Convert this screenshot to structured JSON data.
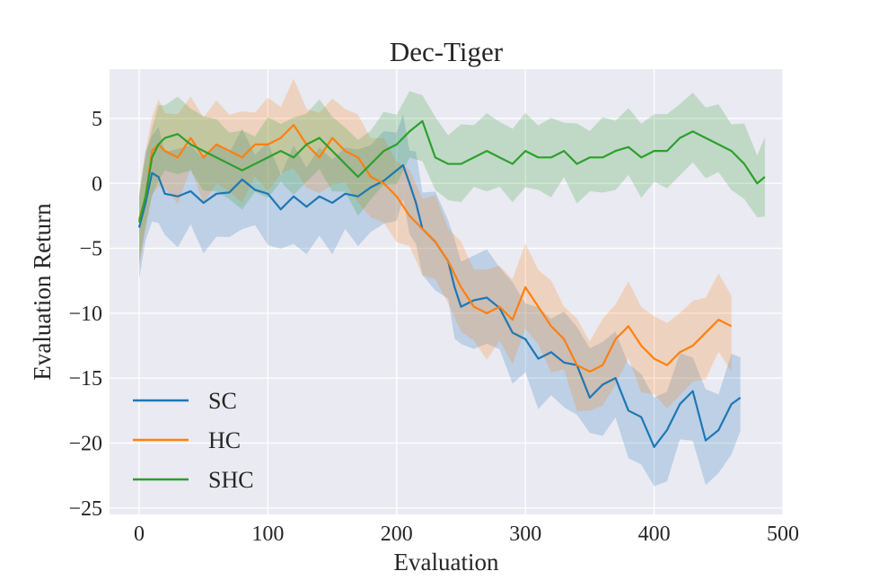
{
  "chart_data": {
    "type": "line",
    "title": "Dec-Tiger",
    "xlabel": "Evaluation",
    "ylabel": "Evaluation Return",
    "xlim": [
      -23,
      500
    ],
    "ylim": [
      -25.5,
      8.8
    ],
    "xticks": [
      0,
      100,
      200,
      300,
      400,
      500
    ],
    "yticks": [
      5,
      0,
      -5,
      -10,
      -15,
      -20,
      -25
    ],
    "xtick_labels": [
      "0",
      "100",
      "200",
      "300",
      "400",
      "500"
    ],
    "ytick_labels": [
      "5",
      "0",
      "−5",
      "−10",
      "−15",
      "−20",
      "−25"
    ],
    "grid": true,
    "legend_position": "lower-left",
    "series": [
      {
        "name": "SC",
        "color": "#1f77b4",
        "band_halfwidth": 3.3,
        "x": [
          0,
          5,
          10,
          15,
          20,
          30,
          40,
          50,
          60,
          70,
          80,
          90,
          100,
          110,
          120,
          130,
          140,
          150,
          160,
          170,
          180,
          190,
          200,
          205,
          210,
          215,
          220,
          230,
          240,
          245,
          250,
          260,
          270,
          280,
          290,
          300,
          310,
          320,
          330,
          340,
          350,
          360,
          370,
          380,
          390,
          400,
          410,
          420,
          430,
          440,
          450,
          460,
          467
        ],
        "y": [
          -3.4,
          -1.5,
          0.8,
          0.5,
          -0.8,
          -1.0,
          -0.6,
          -1.5,
          -0.8,
          -0.7,
          0.3,
          -0.5,
          -0.8,
          -2.0,
          -1.0,
          -1.8,
          -1.0,
          -1.5,
          -0.8,
          -1.0,
          -0.3,
          0.2,
          1.0,
          1.4,
          0.0,
          -1.5,
          -3.5,
          -4.5,
          -6.0,
          -8.0,
          -9.5,
          -9.0,
          -8.8,
          -9.6,
          -11.5,
          -12.0,
          -13.5,
          -13.0,
          -13.8,
          -14.0,
          -16.5,
          -15.5,
          -15.0,
          -17.5,
          -18.0,
          -20.3,
          -19.0,
          -17.0,
          -16.0,
          -19.8,
          -19.0,
          -17.0,
          -16.5
        ]
      },
      {
        "name": "HC",
        "color": "#ff7f0e",
        "band_halfwidth": 3.0,
        "x": [
          0,
          5,
          10,
          15,
          20,
          30,
          40,
          50,
          60,
          70,
          80,
          90,
          100,
          110,
          120,
          130,
          140,
          150,
          160,
          170,
          180,
          190,
          200,
          210,
          220,
          230,
          240,
          250,
          260,
          270,
          280,
          290,
          300,
          310,
          320,
          330,
          340,
          350,
          360,
          370,
          380,
          390,
          400,
          410,
          420,
          430,
          440,
          450,
          460
        ],
        "y": [
          -2.8,
          -1.0,
          2.5,
          3.0,
          2.5,
          2.0,
          3.5,
          2.0,
          3.0,
          2.5,
          2.0,
          3.0,
          3.0,
          3.5,
          4.5,
          3.0,
          2.0,
          3.5,
          2.5,
          2.0,
          0.5,
          0.0,
          -1.0,
          -2.5,
          -3.5,
          -4.5,
          -6.0,
          -8.0,
          -9.5,
          -10.0,
          -9.5,
          -10.5,
          -8.0,
          -9.5,
          -11.0,
          -12.0,
          -14.0,
          -14.5,
          -14.0,
          -12.0,
          -11.0,
          -12.5,
          -13.5,
          -14.0,
          -13.0,
          -12.5,
          -11.5,
          -10.5,
          -11.0
        ]
      },
      {
        "name": "SHC",
        "color": "#2ca02c",
        "band_halfwidth": 2.6,
        "x": [
          0,
          5,
          10,
          15,
          20,
          30,
          40,
          50,
          60,
          70,
          80,
          90,
          100,
          110,
          120,
          130,
          140,
          150,
          160,
          170,
          180,
          190,
          200,
          210,
          220,
          230,
          240,
          250,
          260,
          270,
          280,
          290,
          300,
          310,
          320,
          330,
          340,
          350,
          360,
          370,
          380,
          390,
          400,
          410,
          420,
          430,
          440,
          450,
          460,
          470,
          480,
          486
        ],
        "y": [
          -3.0,
          -1.0,
          2.0,
          3.0,
          3.5,
          3.8,
          3.0,
          2.5,
          2.0,
          1.5,
          1.0,
          1.5,
          2.0,
          2.5,
          2.0,
          3.0,
          3.5,
          2.5,
          1.5,
          0.5,
          1.5,
          2.5,
          3.0,
          4.0,
          4.8,
          2.0,
          1.5,
          1.5,
          2.0,
          2.5,
          2.0,
          1.5,
          2.5,
          2.0,
          2.0,
          2.5,
          1.5,
          2.0,
          2.0,
          2.5,
          2.8,
          2.0,
          2.5,
          2.5,
          3.5,
          4.0,
          3.5,
          3.0,
          2.5,
          1.5,
          0.0,
          0.5
        ]
      }
    ]
  }
}
